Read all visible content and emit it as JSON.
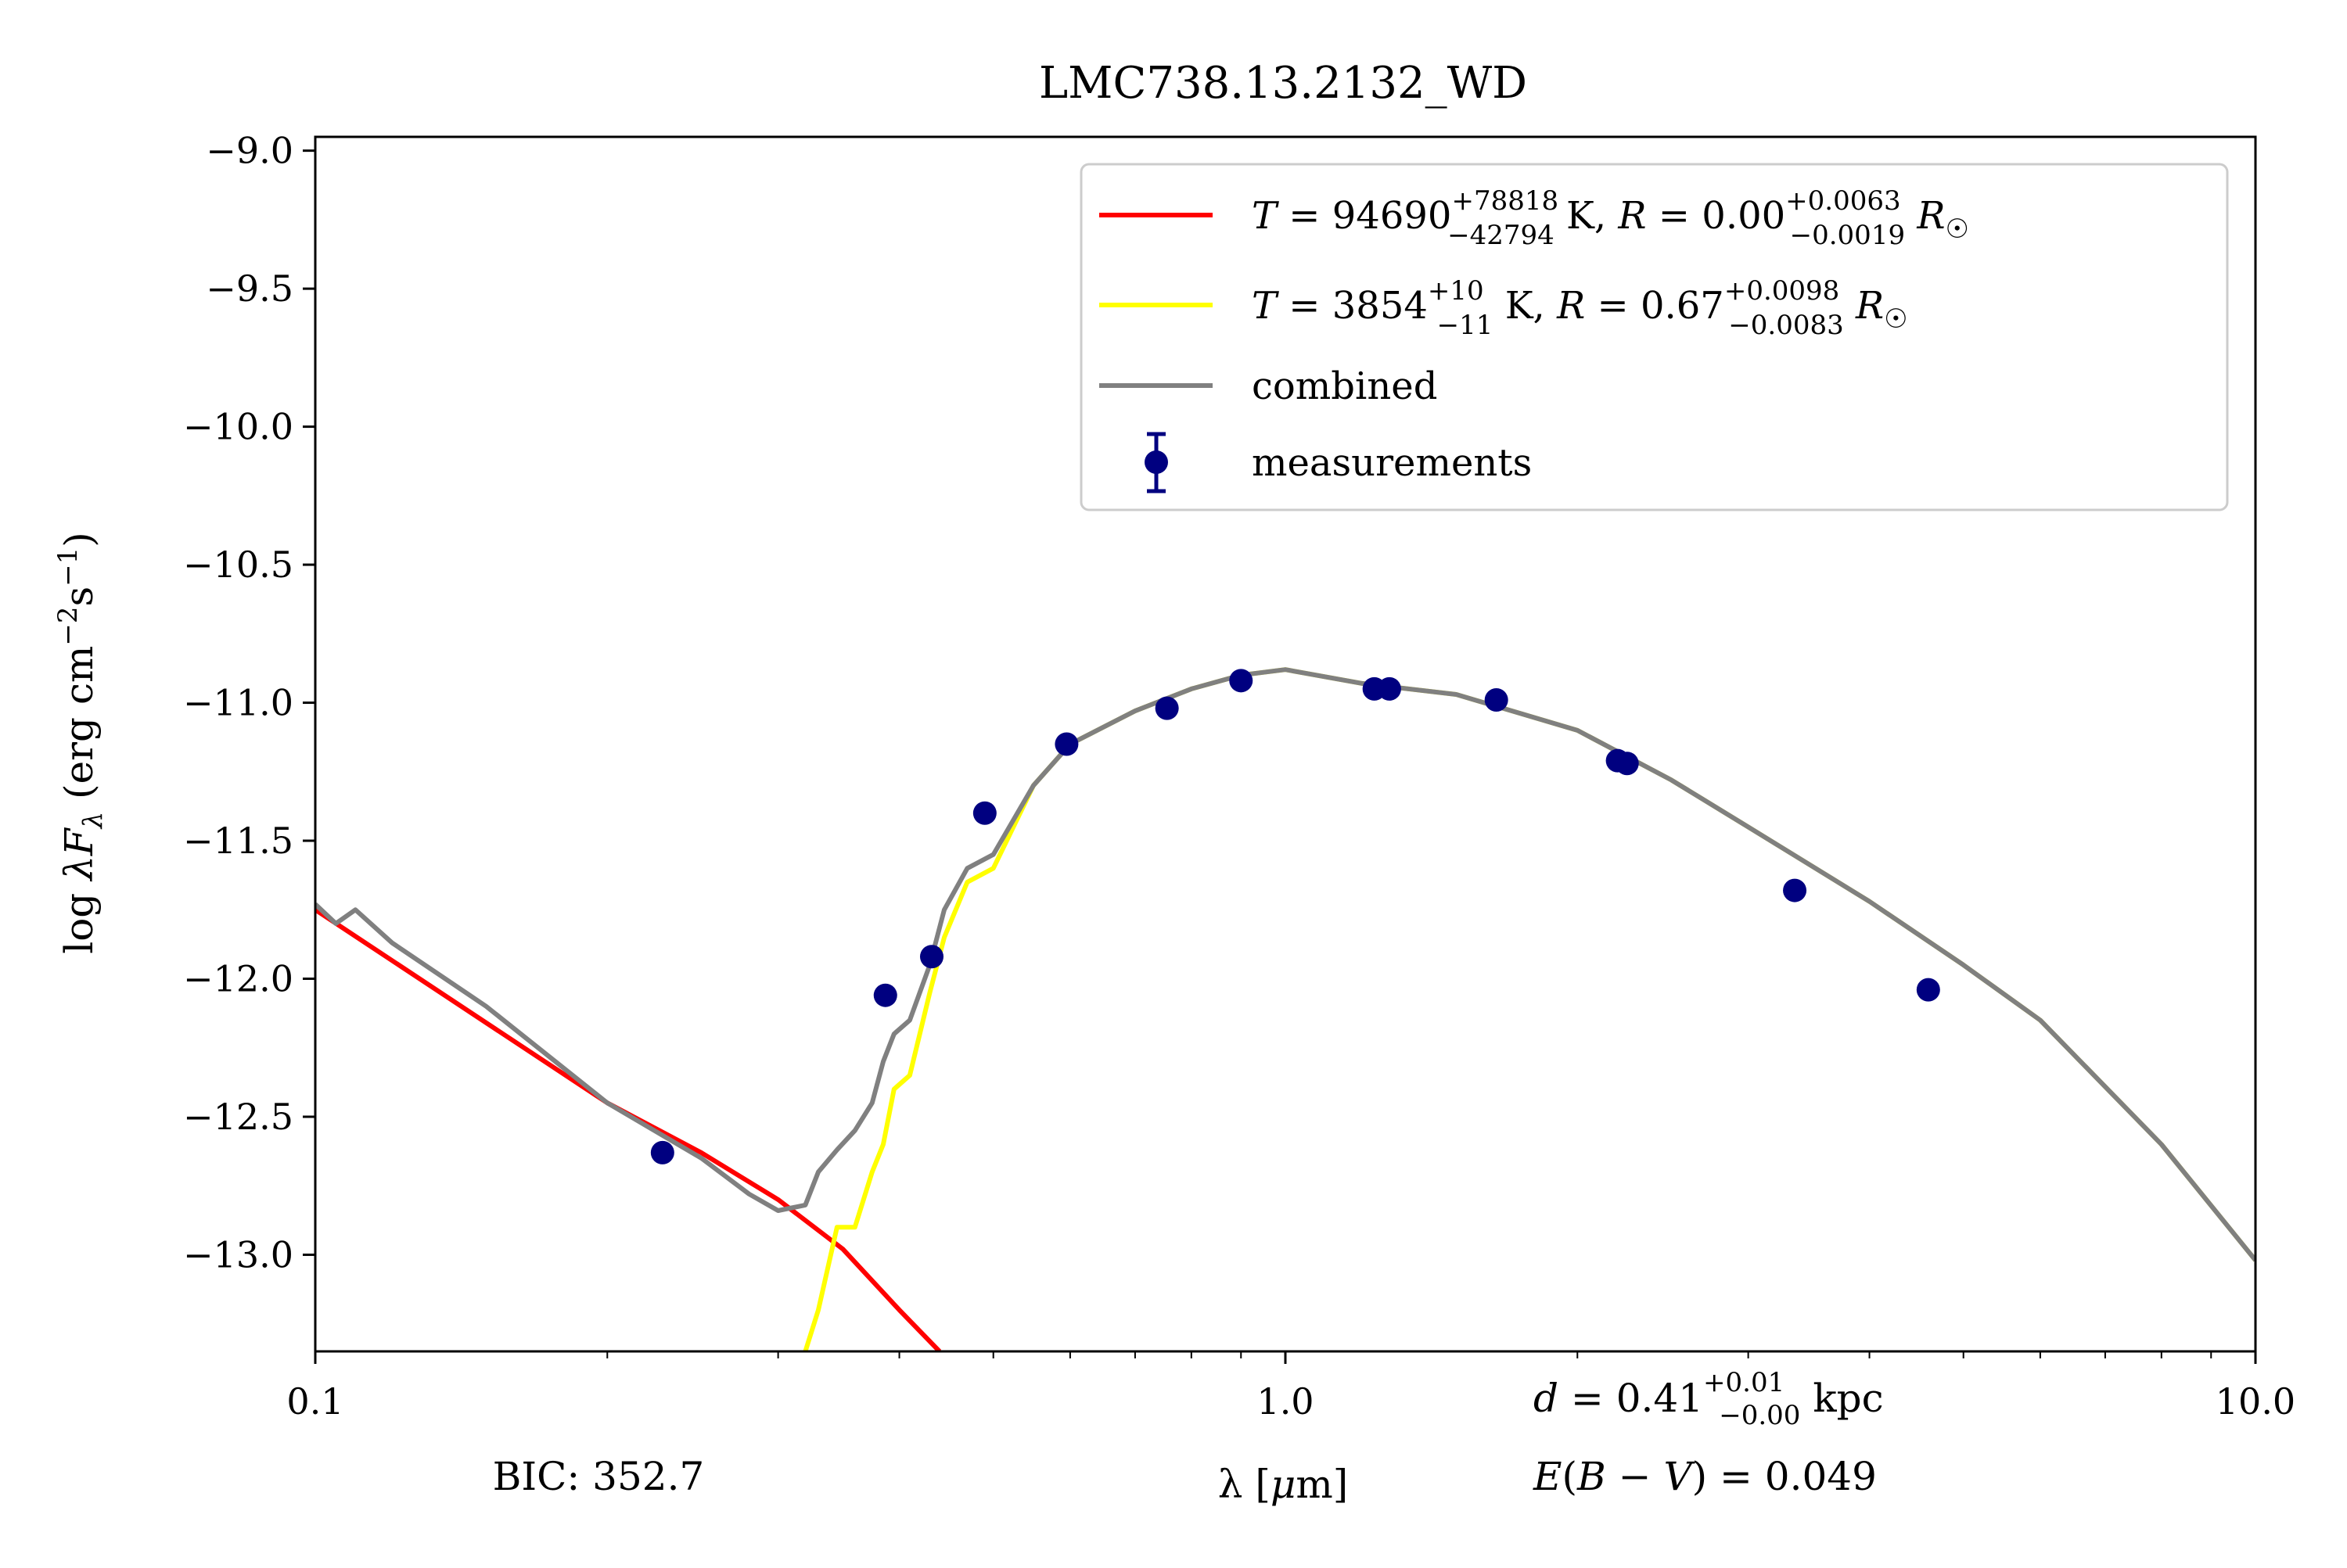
{
  "chart_data": {
    "type": "line",
    "title": "LMC738.13.2132_WD",
    "xlabel": "λ [μm]",
    "ylabel": "log λF_λ (erg cm⁻²s⁻¹)",
    "xscale": "log",
    "xlim": [
      0.1,
      10.0
    ],
    "ylim": [
      -13.35,
      -8.95
    ],
    "x_ticks": [
      {
        "value": 0.1,
        "label": "0.1"
      },
      {
        "value": 1.0,
        "label": "1.0"
      },
      {
        "value": 10.0,
        "label": "10.0"
      }
    ],
    "y_ticks": [
      {
        "value": -9.0,
        "label": "−9.0"
      },
      {
        "value": -9.5,
        "label": "−9.5"
      },
      {
        "value": -10.0,
        "label": "−10.0"
      },
      {
        "value": -10.5,
        "label": "−10.5"
      },
      {
        "value": -11.0,
        "label": "−11.0"
      },
      {
        "value": -11.5,
        "label": "−11.5"
      },
      {
        "value": -12.0,
        "label": "−12.0"
      },
      {
        "value": -12.5,
        "label": "−12.5"
      },
      {
        "value": -13.0,
        "label": "−13.0"
      }
    ],
    "legend_position": "top-right",
    "series": [
      {
        "name": "T = 94690 (+78818 / −42794) K, R = 0.00 (+0.0063 / −0.0019) R☉",
        "color": "#ff0000",
        "x": [
          0.1,
          0.2,
          0.25,
          0.3,
          0.35,
          0.4,
          0.44
        ],
        "y": [
          -11.75,
          -12.45,
          -12.63,
          -12.8,
          -12.98,
          -13.2,
          -13.35
        ]
      },
      {
        "name": "T = 3854 (+10 / −11) K, R = 0.67 (+0.0098 / −0.0083) R☉",
        "color": "#ffff00",
        "x": [
          0.32,
          0.33,
          0.345,
          0.36,
          0.375,
          0.385,
          0.395,
          0.41,
          0.43,
          0.445,
          0.47,
          0.5,
          0.55,
          0.6,
          0.7,
          0.8,
          0.9,
          1.0,
          1.2,
          1.5,
          2.0,
          2.5,
          3.0,
          4.0,
          5.0,
          6.0,
          8.0,
          10.0
        ],
        "y": [
          -13.35,
          -13.2,
          -12.9,
          -12.9,
          -12.7,
          -12.6,
          -12.4,
          -12.35,
          -12.05,
          -11.85,
          -11.65,
          -11.6,
          -11.3,
          -11.15,
          -11.03,
          -10.95,
          -10.9,
          -10.88,
          -10.93,
          -10.97,
          -11.1,
          -11.28,
          -11.45,
          -11.72,
          -11.95,
          -12.15,
          -12.6,
          -13.02
        ]
      },
      {
        "name": "combined",
        "color": "#808080",
        "x": [
          0.1,
          0.105,
          0.11,
          0.12,
          0.15,
          0.2,
          0.25,
          0.28,
          0.3,
          0.32,
          0.33,
          0.345,
          0.36,
          0.375,
          0.385,
          0.395,
          0.41,
          0.43,
          0.445,
          0.47,
          0.5,
          0.55,
          0.6,
          0.7,
          0.8,
          0.9,
          1.0,
          1.2,
          1.5,
          2.0,
          2.5,
          3.0,
          4.0,
          5.0,
          6.0,
          8.0,
          10.0
        ],
        "y": [
          -11.73,
          -11.8,
          -11.75,
          -11.87,
          -12.1,
          -12.45,
          -12.65,
          -12.78,
          -12.84,
          -12.82,
          -12.7,
          -12.62,
          -12.55,
          -12.45,
          -12.3,
          -12.2,
          -12.15,
          -11.95,
          -11.75,
          -11.6,
          -11.55,
          -11.3,
          -11.15,
          -11.03,
          -10.95,
          -10.9,
          -10.88,
          -10.93,
          -10.97,
          -11.1,
          -11.28,
          -11.45,
          -11.72,
          -11.95,
          -12.15,
          -12.6,
          -13.02
        ]
      },
      {
        "name": "measurements",
        "color": "#000080",
        "marker": "circle",
        "x": [
          0.228,
          0.387,
          0.432,
          0.49,
          0.595,
          0.755,
          0.9,
          1.235,
          1.28,
          1.65,
          2.2,
          2.25,
          3.35,
          4.6
        ],
        "y": [
          -12.63,
          -12.06,
          -11.92,
          -11.4,
          -11.15,
          -11.02,
          -10.92,
          -10.95,
          -10.95,
          -10.99,
          -11.21,
          -11.22,
          -11.68,
          -12.04
        ]
      }
    ],
    "annotations": {
      "bic": "BIC: 352.7",
      "distance": "d = 0.41 (+0.01 / −0.00) kpc",
      "ebv": "E(B − V) = 0.049"
    }
  }
}
